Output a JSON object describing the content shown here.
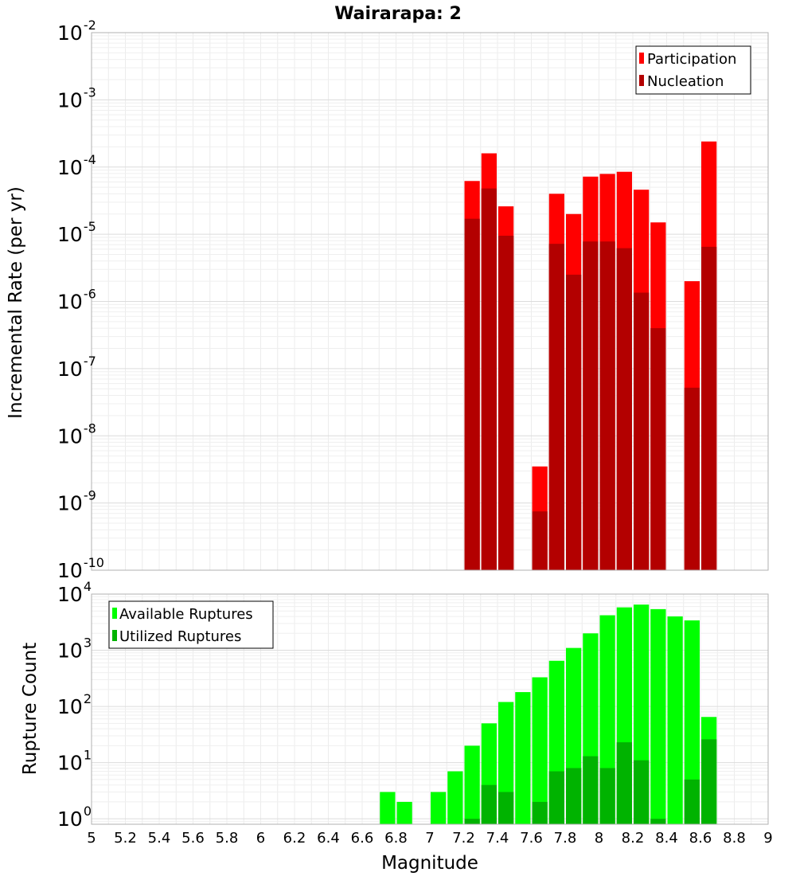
{
  "chart_data": [
    {
      "type": "bar",
      "title": "Wairarapa: 2",
      "xlabel": "",
      "ylabel": "Incremental Rate (per yr)",
      "yscale": "log",
      "ylim": [
        1e-10,
        0.01
      ],
      "xlim": [
        5,
        9
      ],
      "y_ticks": [
        {
          "base": "10",
          "exp": "-10"
        },
        {
          "base": "10",
          "exp": "-9"
        },
        {
          "base": "10",
          "exp": "-8"
        },
        {
          "base": "10",
          "exp": "-7"
        },
        {
          "base": "10",
          "exp": "-6"
        },
        {
          "base": "10",
          "exp": "-5"
        },
        {
          "base": "10",
          "exp": "-4"
        },
        {
          "base": "10",
          "exp": "-3"
        },
        {
          "base": "10",
          "exp": "-2"
        }
      ],
      "legend_position": "top-right",
      "series": [
        {
          "name": "Participation",
          "color": "#ff0000",
          "x": [
            7.25,
            7.35,
            7.45,
            7.65,
            7.75,
            7.85,
            7.95,
            8.05,
            8.15,
            8.25,
            8.35,
            8.55,
            8.65
          ],
          "values": [
            6.2e-05,
            0.00016,
            2.6e-05,
            3.5e-09,
            4e-05,
            2e-05,
            7.2e-05,
            7.9e-05,
            8.5e-05,
            4.6e-05,
            1.5e-05,
            2e-06,
            0.00024
          ]
        },
        {
          "name": "Nucleation",
          "color": "#b30000",
          "x": [
            7.25,
            7.35,
            7.45,
            7.65,
            7.75,
            7.85,
            7.95,
            8.05,
            8.15,
            8.25,
            8.35,
            8.55,
            8.65
          ],
          "values": [
            1.7e-05,
            4.8e-05,
            9.5e-06,
            7.5e-10,
            7.2e-06,
            2.5e-06,
            7.8e-06,
            7.8e-06,
            6.2e-06,
            1.35e-06,
            4e-07,
            5.2e-08,
            6.5e-06
          ]
        }
      ]
    },
    {
      "type": "bar",
      "xlabel": "Magnitude",
      "ylabel": "Rupture Count",
      "yscale": "log",
      "ylim": [
        0.8,
        10000
      ],
      "xlim": [
        5,
        9
      ],
      "x_ticks": [
        "5",
        "5.2",
        "5.4",
        "5.6",
        "5.8",
        "6",
        "6.2",
        "6.4",
        "6.6",
        "6.8",
        "7",
        "7.2",
        "7.4",
        "7.6",
        "7.8",
        "8",
        "8.2",
        "8.4",
        "8.6",
        "8.8",
        "9"
      ],
      "y_ticks": [
        {
          "base": "10",
          "exp": "0"
        },
        {
          "base": "10",
          "exp": "1"
        },
        {
          "base": "10",
          "exp": "2"
        },
        {
          "base": "10",
          "exp": "3"
        },
        {
          "base": "10",
          "exp": "4"
        }
      ],
      "legend_position": "top-left",
      "series": [
        {
          "name": "Available Ruptures",
          "color": "#00ff00",
          "x": [
            6.75,
            6.85,
            7.05,
            7.15,
            7.25,
            7.35,
            7.45,
            7.55,
            7.65,
            7.75,
            7.85,
            7.95,
            8.05,
            8.15,
            8.25,
            8.35,
            8.45,
            8.55,
            8.65
          ],
          "values": [
            3,
            2,
            3,
            7,
            20,
            50,
            120,
            180,
            330,
            650,
            1100,
            2000,
            4200,
            5800,
            6500,
            5400,
            4000,
            3400,
            65
          ]
        },
        {
          "name": "Utilized Ruptures",
          "color": "#00b300",
          "x": [
            7.25,
            7.35,
            7.45,
            7.65,
            7.75,
            7.85,
            7.95,
            8.05,
            8.15,
            8.25,
            8.35,
            8.55,
            8.65
          ],
          "values": [
            1,
            4,
            3,
            2,
            7,
            8,
            13,
            8,
            23,
            11,
            1,
            5,
            26
          ]
        }
      ]
    }
  ]
}
